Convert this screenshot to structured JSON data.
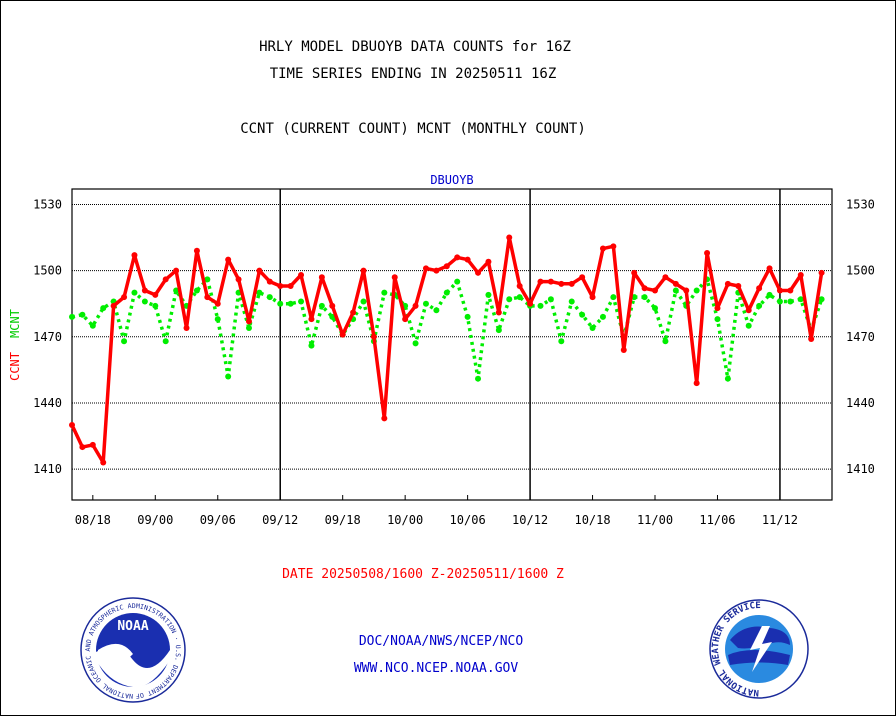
{
  "header": {
    "line1": "HRLY MODEL DBUOYB DATA COUNTS for 16Z",
    "line2": "TIME SERIES ENDING IN 20250511 16Z",
    "line3": "CCNT (CURRENT COUNT) MCNT (MONTHLY COUNT)"
  },
  "footer": {
    "date_range": "DATE 20250508/1600 Z-20250511/1600 Z",
    "org": "DOC/NOAA/NWS/NCEP/NCO",
    "url": "WWW.NCO.NCEP.NOAA.GOV"
  },
  "logos": {
    "left": "NOAA",
    "left_ring": "NATIONAL OCEANIC AND ATMOSPHERIC ADMINISTRATION · U.S. DEPARTMENT OF COMMERCE",
    "right_ring": "NATIONAL WEATHER SERVICE"
  },
  "colors": {
    "ccnt": "#ff0000",
    "mcnt": "#00ee00",
    "title_blue": "#0000cc",
    "date_red": "#ff0000"
  },
  "chart_data": {
    "type": "line",
    "title": "DBUOYB",
    "ylabel_ccnt": "CCNT",
    "ylabel_mcnt": "MCNT",
    "ylim": [
      1396,
      1537
    ],
    "yticks": [
      1410,
      1440,
      1470,
      1500,
      1530
    ],
    "ytick_labels_left": [
      "1410",
      "1440",
      "1470",
      "1500",
      "1530"
    ],
    "ytick_labels_right": [
      "1410",
      "1440",
      "1470",
      "1500",
      "1530"
    ],
    "xlim": [
      0,
      73
    ],
    "x_tick_labels": [
      "08/18",
      "09/00",
      "09/06",
      "09/12",
      "09/18",
      "10/00",
      "10/06",
      "10/12",
      "10/18",
      "11/00",
      "11/06",
      "11/12"
    ],
    "x_tick_positions": [
      2,
      8,
      14,
      20,
      26,
      32,
      38,
      44,
      50,
      56,
      62,
      68
    ],
    "day_boundaries": [
      20,
      44,
      68
    ],
    "grid": true,
    "legend": "left axis labels",
    "series": [
      {
        "name": "CCNT",
        "values": [
          1430,
          1420,
          1421,
          1413,
          1484,
          1488,
          1507,
          1491,
          1489,
          1496,
          1500,
          1474,
          1509,
          1488,
          1485,
          1505,
          1496,
          1477,
          1500,
          1495,
          1493,
          1493,
          1498,
          1478,
          1497,
          1484,
          1471,
          1481,
          1500,
          1470,
          1433,
          1497,
          1478,
          1484,
          1501,
          1500,
          1502,
          1506,
          1505,
          1499,
          1504,
          1481,
          1515,
          1493,
          1485,
          1495,
          1495,
          1494,
          1494,
          1497,
          1488,
          1510,
          1511,
          1464,
          1499,
          1492,
          1491,
          1497,
          1494,
          1491,
          1449,
          1508,
          1483,
          1494,
          1493,
          1482,
          1492,
          1501,
          1491,
          1491,
          1498,
          1469,
          1499
        ]
      },
      {
        "name": "MCNT",
        "values": [
          1479,
          1480,
          1475,
          1483,
          1486,
          1468,
          1490,
          1486,
          1484,
          1468,
          1491,
          1484,
          1491,
          1496,
          1478,
          1452,
          1490,
          1474,
          1490,
          1488,
          1485,
          1485,
          1486,
          1466,
          1484,
          1479,
          1471,
          1478,
          1486,
          1468,
          1490,
          1489,
          1484,
          1467,
          1485,
          1482,
          1490,
          1495,
          1479,
          1451,
          1489,
          1473,
          1487,
          1488,
          1484,
          1484,
          1487,
          1468,
          1486,
          1480,
          1474,
          1479,
          1488,
          1470,
          1488,
          1488,
          1483,
          1468,
          1491,
          1484,
          1491,
          1496,
          1478,
          1451,
          1490,
          1475,
          1484,
          1489,
          1486,
          1486,
          1487,
          1473,
          1487
        ]
      }
    ]
  }
}
